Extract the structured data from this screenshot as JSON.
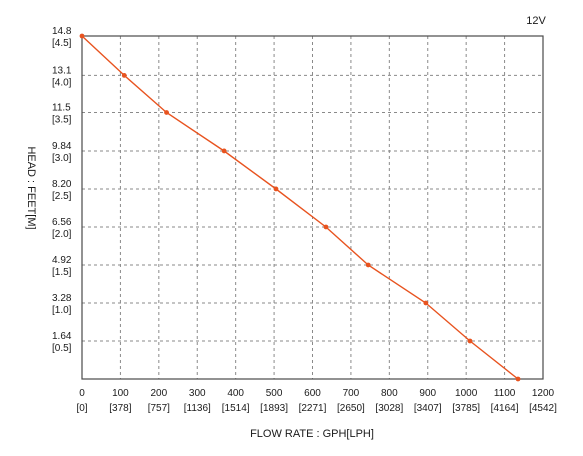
{
  "chart_data": {
    "type": "line",
    "title": "12V",
    "xlabel": "FLOW RATE : GPH[LPH]",
    "ylabel": "HEAD : FEET[M]",
    "xlim": [
      0,
      1200
    ],
    "ylim": [
      0,
      14.8
    ],
    "x_ticks": [
      {
        "value": 0,
        "label": "0",
        "sub": "[0]"
      },
      {
        "value": 100,
        "label": "100",
        "sub": "[378]"
      },
      {
        "value": 200,
        "label": "200",
        "sub": "[757]"
      },
      {
        "value": 300,
        "label": "300",
        "sub": "[1136]"
      },
      {
        "value": 400,
        "label": "400",
        "sub": "[1514]"
      },
      {
        "value": 500,
        "label": "500",
        "sub": "[1893]"
      },
      {
        "value": 600,
        "label": "600",
        "sub": "[2271]"
      },
      {
        "value": 700,
        "label": "700",
        "sub": "[2650]"
      },
      {
        "value": 800,
        "label": "800",
        "sub": "[3028]"
      },
      {
        "value": 900,
        "label": "900",
        "sub": "[3407]"
      },
      {
        "value": 1000,
        "label": "1000",
        "sub": "[3785]"
      },
      {
        "value": 1100,
        "label": "1100",
        "sub": "[4164]"
      },
      {
        "value": 1200,
        "label": "1200",
        "sub": "[4542]"
      }
    ],
    "y_ticks": [
      {
        "value": 14.8,
        "label": "14.8",
        "sub": "[4.5]"
      },
      {
        "value": 13.1,
        "label": "13.1",
        "sub": "[4.0]"
      },
      {
        "value": 11.5,
        "label": "11.5",
        "sub": "[3.5]"
      },
      {
        "value": 9.84,
        "label": "9.84",
        "sub": "[3.0]"
      },
      {
        "value": 8.2,
        "label": "8.20",
        "sub": "[2.5]"
      },
      {
        "value": 6.56,
        "label": "6.56",
        "sub": "[2.0]"
      },
      {
        "value": 4.92,
        "label": "4.92",
        "sub": "[1.5]"
      },
      {
        "value": 3.28,
        "label": "3.28",
        "sub": "[1.0]"
      },
      {
        "value": 1.64,
        "label": "1.64",
        "sub": "[0.5]"
      }
    ],
    "grid": true,
    "series": [
      {
        "color": "#e8531f",
        "points": [
          {
            "x": 0,
            "y": 14.8
          },
          {
            "x": 110,
            "y": 13.1
          },
          {
            "x": 220,
            "y": 11.5
          },
          {
            "x": 370,
            "y": 9.84
          },
          {
            "x": 505,
            "y": 8.2
          },
          {
            "x": 635,
            "y": 6.56
          },
          {
            "x": 745,
            "y": 4.92
          },
          {
            "x": 895,
            "y": 3.28
          },
          {
            "x": 1010,
            "y": 1.64
          },
          {
            "x": 1135,
            "y": 0
          }
        ]
      }
    ]
  }
}
